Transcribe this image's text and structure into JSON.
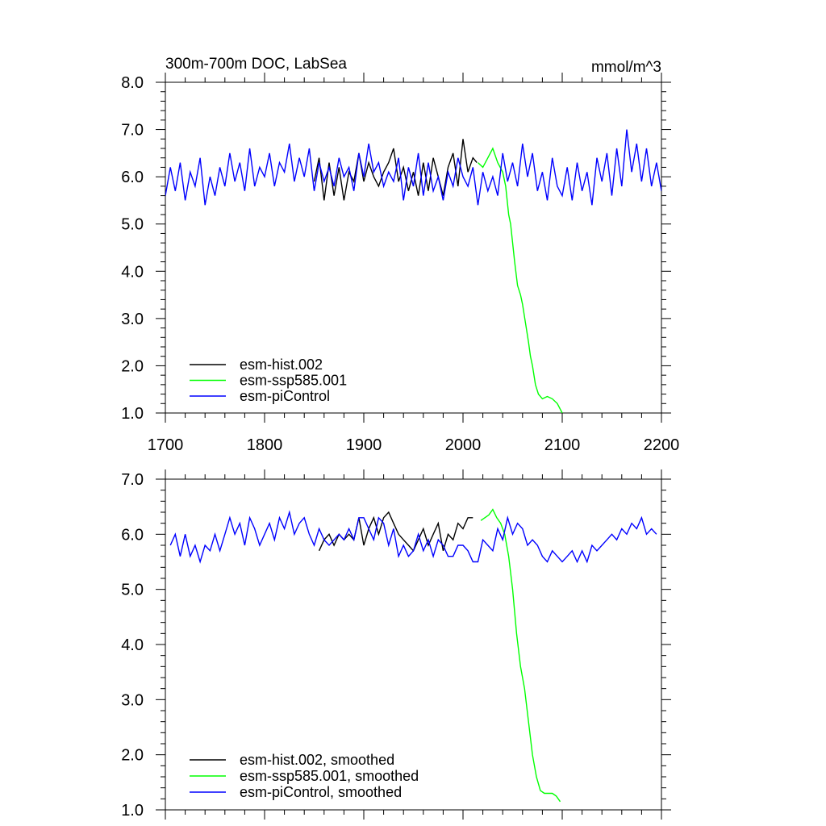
{
  "chart_data": [
    {
      "type": "line",
      "title": "300m-700m DOC, LabSea",
      "units": "mmol/m^3",
      "xlim": [
        1700,
        2200
      ],
      "ylim": [
        1.0,
        8.0
      ],
      "x_ticks": [
        "1700",
        "1800",
        "1900",
        "2000",
        "2100",
        "2200"
      ],
      "y_ticks": [
        "1.0",
        "2.0",
        "3.0",
        "4.0",
        "5.0",
        "6.0",
        "7.0",
        "8.0"
      ],
      "grid": false,
      "legend_position": "bottom-left",
      "series": [
        {
          "name": "esm-hist.002",
          "color": "#000000",
          "x": [
            1850,
            1855,
            1860,
            1865,
            1870,
            1875,
            1880,
            1885,
            1890,
            1895,
            1900,
            1905,
            1910,
            1915,
            1920,
            1925,
            1930,
            1935,
            1940,
            1945,
            1950,
            1955,
            1960,
            1965,
            1970,
            1975,
            1980,
            1985,
            1990,
            1995,
            2000,
            2005,
            2010,
            2014
          ],
          "values": [
            5.9,
            6.4,
            5.5,
            6.3,
            5.6,
            6.2,
            5.5,
            6.1,
            5.9,
            6.5,
            5.9,
            6.3,
            6.0,
            5.8,
            6.1,
            6.3,
            6.6,
            5.9,
            6.2,
            5.7,
            6.1,
            5.6,
            6.3,
            5.7,
            6.4,
            6.0,
            5.6,
            6.2,
            6.5,
            5.8,
            6.8,
            6.1,
            6.4,
            6.3
          ]
        },
        {
          "name": "esm-ssp585.001",
          "color": "#00ff00",
          "x": [
            2015,
            2020,
            2025,
            2030,
            2035,
            2040,
            2043,
            2046,
            2048,
            2050,
            2052,
            2055,
            2058,
            2060,
            2063,
            2066,
            2068,
            2070,
            2073,
            2076,
            2080,
            2085,
            2090,
            2095,
            2100
          ],
          "values": [
            6.3,
            6.2,
            6.4,
            6.6,
            6.3,
            6.1,
            5.8,
            5.2,
            5.0,
            4.6,
            4.2,
            3.7,
            3.5,
            3.3,
            2.9,
            2.5,
            2.2,
            2.0,
            1.6,
            1.4,
            1.3,
            1.35,
            1.3,
            1.2,
            1.0
          ]
        },
        {
          "name": "esm-piControl",
          "color": "#0000ff",
          "x": [
            1700,
            1705,
            1710,
            1715,
            1720,
            1725,
            1730,
            1735,
            1740,
            1745,
            1750,
            1755,
            1760,
            1765,
            1770,
            1775,
            1780,
            1785,
            1790,
            1795,
            1800,
            1805,
            1810,
            1815,
            1820,
            1825,
            1830,
            1835,
            1840,
            1845,
            1850,
            1855,
            1860,
            1865,
            1870,
            1875,
            1880,
            1885,
            1890,
            1895,
            1900,
            1905,
            1910,
            1915,
            1920,
            1925,
            1930,
            1935,
            1940,
            1945,
            1950,
            1955,
            1960,
            1965,
            1970,
            1975,
            1980,
            1985,
            1990,
            1995,
            2000,
            2005,
            2010,
            2015,
            2020,
            2025,
            2030,
            2035,
            2040,
            2045,
            2050,
            2055,
            2060,
            2065,
            2070,
            2075,
            2080,
            2085,
            2090,
            2095,
            2100,
            2105,
            2110,
            2115,
            2120,
            2125,
            2130,
            2135,
            2140,
            2145,
            2150,
            2155,
            2160,
            2165,
            2170,
            2175,
            2180,
            2185,
            2190,
            2195,
            2200
          ],
          "values": [
            5.6,
            6.2,
            5.7,
            6.3,
            5.5,
            6.1,
            5.8,
            6.4,
            5.4,
            6.0,
            5.6,
            6.2,
            5.8,
            6.5,
            5.9,
            6.3,
            5.7,
            6.6,
            5.8,
            6.2,
            6.0,
            6.5,
            5.8,
            6.3,
            6.1,
            6.7,
            5.9,
            6.4,
            6.0,
            6.6,
            5.7,
            6.3,
            5.9,
            6.2,
            5.8,
            6.4,
            6.0,
            6.2,
            5.7,
            6.5,
            6.0,
            6.7,
            6.1,
            6.3,
            5.8,
            6.1,
            5.9,
            6.4,
            5.5,
            6.2,
            5.8,
            6.5,
            5.6,
            6.3,
            5.7,
            6.0,
            5.5,
            6.1,
            5.8,
            6.4,
            6.0,
            5.8,
            6.2,
            5.4,
            6.1,
            5.7,
            6.0,
            5.6,
            6.5,
            5.9,
            6.3,
            5.8,
            6.7,
            6.0,
            6.5,
            5.7,
            6.1,
            5.5,
            6.4,
            5.8,
            5.6,
            6.2,
            5.5,
            6.3,
            5.7,
            6.1,
            5.4,
            6.4,
            5.9,
            6.5,
            5.6,
            6.6,
            5.8,
            7.0,
            6.1,
            6.7,
            5.9,
            6.6,
            5.8,
            6.3,
            5.7
          ]
        }
      ]
    },
    {
      "type": "line",
      "title": "",
      "xlim": [
        1700,
        2200
      ],
      "ylim": [
        1.0,
        7.0
      ],
      "y_ticks": [
        "1.0",
        "2.0",
        "3.0",
        "4.0",
        "5.0",
        "6.0",
        "7.0"
      ],
      "grid": false,
      "legend_position": "bottom-left",
      "series": [
        {
          "name": "esm-hist.002, smoothed",
          "color": "#000000",
          "x": [
            1855,
            1860,
            1865,
            1870,
            1875,
            1880,
            1885,
            1890,
            1895,
            1900,
            1905,
            1910,
            1915,
            1920,
            1925,
            1930,
            1935,
            1940,
            1945,
            1950,
            1955,
            1960,
            1965,
            1970,
            1975,
            1980,
            1985,
            1990,
            1995,
            2000,
            2005,
            2010
          ],
          "values": [
            5.7,
            5.9,
            6.0,
            5.8,
            6.0,
            5.9,
            6.0,
            5.9,
            6.3,
            5.8,
            6.1,
            6.3,
            6.0,
            6.3,
            6.4,
            6.2,
            6.0,
            5.9,
            5.8,
            5.7,
            5.9,
            6.1,
            5.8,
            6.0,
            6.2,
            5.7,
            6.0,
            5.9,
            6.2,
            6.1,
            6.3,
            6.3
          ]
        },
        {
          "name": "esm-ssp585.001, smoothed",
          "color": "#00ff00",
          "x": [
            2018,
            2022,
            2026,
            2030,
            2034,
            2038,
            2042,
            2046,
            2050,
            2054,
            2058,
            2062,
            2066,
            2070,
            2074,
            2078,
            2082,
            2086,
            2090,
            2094,
            2098
          ],
          "values": [
            6.25,
            6.3,
            6.35,
            6.45,
            6.3,
            6.2,
            6.0,
            5.6,
            5.0,
            4.2,
            3.6,
            3.2,
            2.6,
            2.0,
            1.6,
            1.35,
            1.3,
            1.3,
            1.3,
            1.25,
            1.15
          ]
        },
        {
          "name": "esm-piControl, smoothed",
          "color": "#0000ff",
          "x": [
            1705,
            1710,
            1715,
            1720,
            1725,
            1730,
            1735,
            1740,
            1745,
            1750,
            1755,
            1760,
            1765,
            1770,
            1775,
            1780,
            1785,
            1790,
            1795,
            1800,
            1805,
            1810,
            1815,
            1820,
            1825,
            1830,
            1835,
            1840,
            1845,
            1850,
            1855,
            1860,
            1865,
            1870,
            1875,
            1880,
            1885,
            1890,
            1895,
            1900,
            1905,
            1910,
            1915,
            1920,
            1925,
            1930,
            1935,
            1940,
            1945,
            1950,
            1955,
            1960,
            1965,
            1970,
            1975,
            1980,
            1985,
            1990,
            1995,
            2000,
            2005,
            2010,
            2015,
            2020,
            2025,
            2030,
            2035,
            2040,
            2045,
            2050,
            2055,
            2060,
            2065,
            2070,
            2075,
            2080,
            2085,
            2090,
            2095,
            2100,
            2105,
            2110,
            2115,
            2120,
            2125,
            2130,
            2135,
            2140,
            2145,
            2150,
            2155,
            2160,
            2165,
            2170,
            2175,
            2180,
            2185,
            2190,
            2195
          ],
          "values": [
            5.8,
            6.0,
            5.6,
            6.0,
            5.6,
            5.8,
            5.5,
            5.8,
            5.7,
            6.0,
            5.7,
            6.0,
            6.3,
            6.0,
            6.2,
            5.8,
            6.3,
            6.1,
            5.8,
            6.0,
            6.2,
            5.9,
            6.3,
            6.1,
            6.4,
            6.0,
            6.2,
            6.3,
            6.0,
            5.8,
            6.1,
            5.9,
            5.8,
            5.9,
            6.0,
            5.9,
            6.1,
            5.9,
            6.3,
            6.3,
            6.1,
            5.9,
            6.3,
            6.2,
            5.8,
            6.1,
            5.6,
            5.8,
            5.6,
            5.7,
            6.0,
            5.7,
            5.9,
            5.6,
            5.9,
            5.8,
            5.6,
            5.6,
            5.8,
            5.8,
            5.7,
            5.5,
            5.5,
            5.9,
            5.8,
            5.7,
            6.1,
            5.9,
            6.3,
            6.0,
            6.2,
            6.1,
            5.8,
            5.9,
            5.8,
            5.6,
            5.5,
            5.7,
            5.6,
            5.5,
            5.6,
            5.7,
            5.5,
            5.7,
            5.5,
            5.8,
            5.7,
            5.8,
            5.9,
            6.0,
            5.9,
            6.1,
            6.0,
            6.2,
            6.1,
            6.3,
            6.0,
            6.1,
            6.0
          ]
        }
      ]
    }
  ]
}
